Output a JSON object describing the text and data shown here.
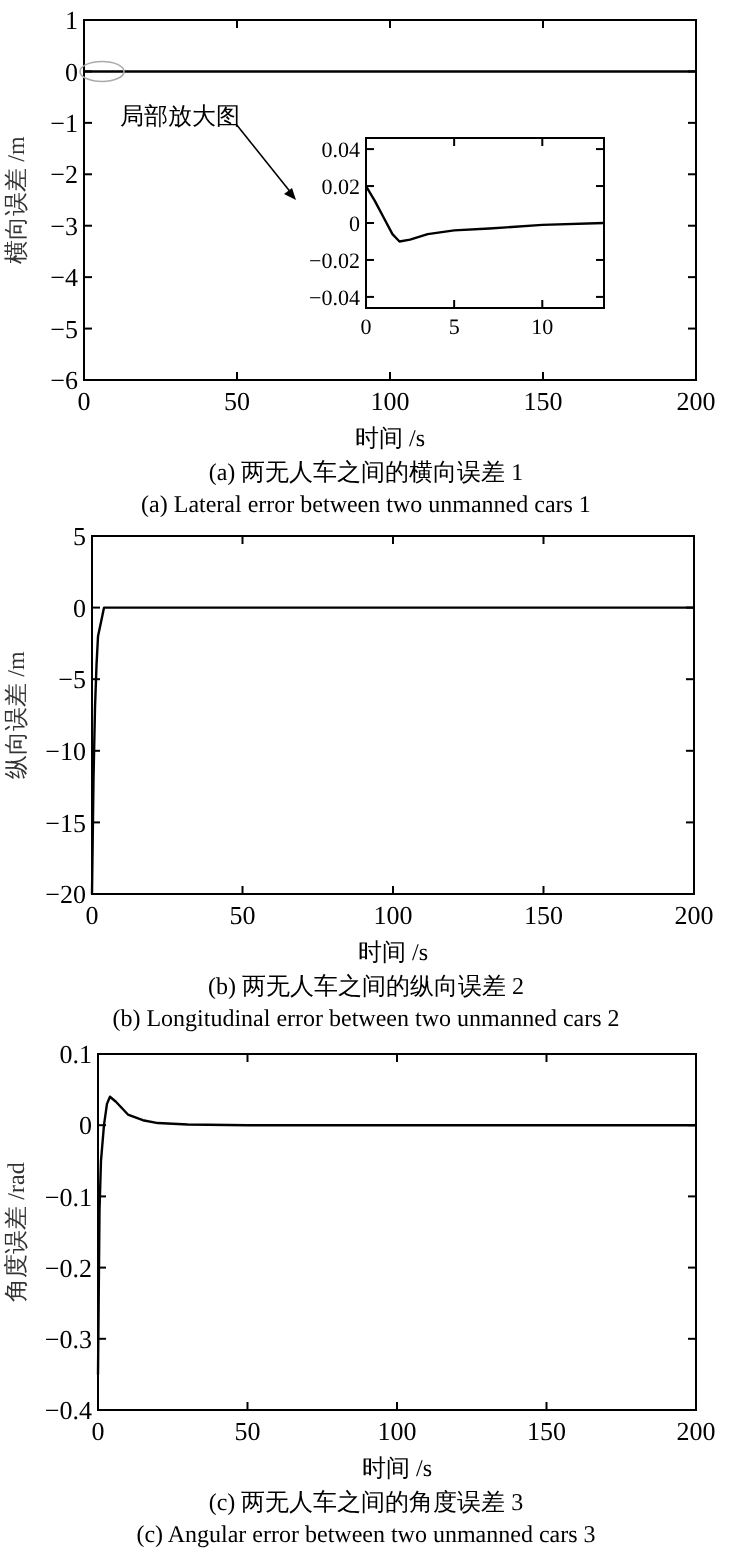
{
  "chart_data": [
    {
      "type": "line",
      "title": "(a) 两无人车之间的横向误差 1",
      "subtitle": "(a) Lateral error between two unmanned cars 1",
      "xlabel": "时间 /s",
      "ylabel": "横向误差 /m",
      "annotations": [
        "局部放大图"
      ],
      "xlim": [
        0,
        200
      ],
      "ylim": [
        -6,
        1
      ],
      "xticks": [
        0,
        50,
        100,
        150,
        200
      ],
      "yticks": [
        -6,
        -5,
        -4,
        -3,
        -2,
        -1,
        0,
        1
      ],
      "series": [
        {
          "color": "#000000",
          "x": [
            0,
            200
          ],
          "values": [
            0,
            0
          ]
        }
      ]
    },
    {
      "type": "line",
      "xlim": [
        0,
        13.5
      ],
      "ylim": [
        -0.046,
        0.046
      ],
      "xticks": [
        0,
        5,
        10
      ],
      "yticks": [
        -0.04,
        -0.02,
        0,
        0.02,
        0.04
      ],
      "series": [
        {
          "color": "#000000",
          "x": [
            0,
            0.5,
            1,
            1.5,
            1.9,
            2.5,
            3.5,
            5,
            7,
            10,
            13.5
          ],
          "values": [
            0.02,
            0.012,
            0.003,
            -0.006,
            -0.01,
            -0.009,
            -0.006,
            -0.004,
            -0.003,
            -0.001,
            0
          ]
        }
      ]
    },
    {
      "type": "line",
      "title": "(b) 两无人车之间的纵向误差 2",
      "subtitle": "(b) Longitudinal error between two unmanned cars 2",
      "xlabel": "时间 /s",
      "ylabel": "纵向误差 /m",
      "xlim": [
        0,
        200
      ],
      "ylim": [
        -20,
        5
      ],
      "xticks": [
        0,
        50,
        100,
        150,
        200
      ],
      "yticks": [
        -20,
        -15,
        -10,
        -5,
        0,
        5
      ],
      "series": [
        {
          "color": "#000000",
          "x": [
            0,
            0.5,
            1,
            1.5,
            2,
            3,
            4,
            5,
            200
          ],
          "values": [
            -20,
            -12,
            -7,
            -4,
            -2,
            -1,
            0,
            0,
            0
          ]
        }
      ]
    },
    {
      "type": "line",
      "title": "(c) 两无人车之间的角度误差 3",
      "subtitle": "(c) Angular error between two unmanned cars 3",
      "xlabel": "时间 /s",
      "ylabel": "角度误差 /rad",
      "xlim": [
        0,
        200
      ],
      "ylim": [
        -0.4,
        0.1
      ],
      "xticks": [
        0,
        50,
        100,
        150,
        200
      ],
      "yticks": [
        -0.4,
        -0.3,
        -0.2,
        -0.1,
        0,
        0.1
      ],
      "series": [
        {
          "color": "#000000",
          "x": [
            0,
            0.5,
            1,
            2,
            3,
            4,
            6,
            10,
            15,
            20,
            30,
            50,
            200
          ],
          "values": [
            -0.35,
            -0.12,
            -0.05,
            0,
            0.03,
            0.04,
            0.033,
            0.015,
            0.007,
            0.003,
            0.001,
            0,
            0
          ]
        }
      ]
    }
  ]
}
